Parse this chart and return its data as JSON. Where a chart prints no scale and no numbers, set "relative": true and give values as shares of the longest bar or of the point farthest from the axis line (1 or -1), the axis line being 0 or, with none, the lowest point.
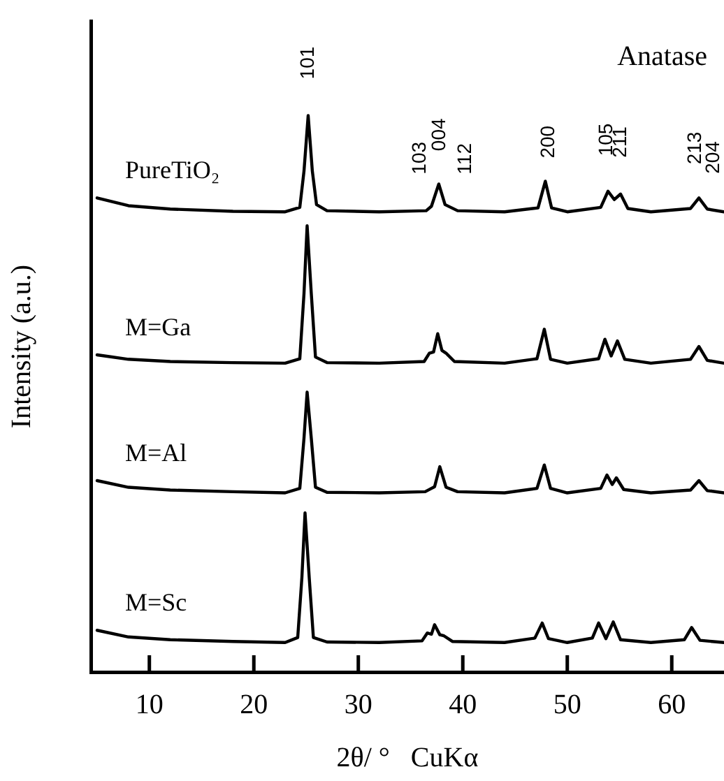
{
  "chart_data": {
    "type": "line",
    "relative": true,
    "xlabel": "2θ/ °   CuKα",
    "ylabel": "Intensity (a.u.)",
    "xlim": [
      4.4,
      65
    ],
    "xticks": [
      10,
      20,
      30,
      40,
      50,
      60
    ],
    "grid": false,
    "legend": false,
    "marker": "none",
    "line_style": "solid",
    "annotations": [
      "Anatase",
      {
        "text": "101",
        "x": 25.2,
        "y": 1.0
      },
      {
        "text": "103",
        "x": 35.9,
        "y": 0.829
      },
      {
        "text": "004",
        "x": 37.8,
        "y": 0.871
      },
      {
        "text": "112",
        "x": 40.3,
        "y": 0.829
      },
      {
        "text": "200",
        "x": 48.2,
        "y": 0.858
      },
      {
        "text": "105",
        "x": 53.8,
        "y": 0.862
      },
      {
        "text": "211",
        "x": 55.1,
        "y": 0.859
      },
      {
        "text": "213",
        "x": 62.3,
        "y": 0.847
      },
      {
        "text": "204",
        "x": 64.0,
        "y": 0.83
      }
    ],
    "series": [
      {
        "name": "PureTiO₂",
        "color": "#000000",
        "x": [
          5,
          8,
          12,
          18,
          23,
          24.4,
          24.8,
          25.2,
          25.6,
          26.0,
          27,
          32,
          36.5,
          37.0,
          37.7,
          38.3,
          39.5,
          44,
          47.2,
          47.9,
          48.5,
          50,
          53.2,
          53.9,
          54.5,
          55.1,
          55.8,
          58,
          61.8,
          62.6,
          63.4,
          65
        ],
        "values": [
          0.852,
          0.838,
          0.832,
          0.828,
          0.827,
          0.835,
          0.9,
          1.0,
          0.9,
          0.84,
          0.829,
          0.827,
          0.829,
          0.837,
          0.877,
          0.84,
          0.829,
          0.827,
          0.834,
          0.882,
          0.834,
          0.827,
          0.835,
          0.864,
          0.849,
          0.859,
          0.833,
          0.827,
          0.833,
          0.852,
          0.832,
          0.827
        ]
      },
      {
        "name": "M=Ga",
        "color": "#000000",
        "x": [
          5,
          8,
          12,
          18,
          23,
          24.4,
          24.8,
          25.1,
          25.5,
          25.9,
          27,
          32,
          36.3,
          36.8,
          37.2,
          37.6,
          38.0,
          38.4,
          39.2,
          44,
          47.1,
          47.8,
          48.4,
          50,
          53.0,
          53.6,
          54.2,
          54.8,
          55.5,
          58,
          61.8,
          62.6,
          63.4,
          65
        ],
        "values": [
          0.57,
          0.562,
          0.558,
          0.556,
          0.555,
          0.563,
          0.68,
          0.802,
          0.68,
          0.566,
          0.556,
          0.555,
          0.558,
          0.573,
          0.575,
          0.608,
          0.578,
          0.573,
          0.558,
          0.555,
          0.563,
          0.616,
          0.562,
          0.555,
          0.563,
          0.598,
          0.568,
          0.595,
          0.562,
          0.555,
          0.562,
          0.585,
          0.56,
          0.555
        ]
      },
      {
        "name": "M=Al",
        "color": "#000000",
        "x": [
          5,
          8,
          12,
          18,
          23,
          24.4,
          24.8,
          25.1,
          25.5,
          25.9,
          27,
          32,
          36.4,
          36.9,
          37.3,
          37.8,
          38.4,
          39.5,
          44,
          47.1,
          47.8,
          48.4,
          50,
          53.2,
          53.8,
          54.3,
          54.7,
          55.4,
          58,
          61.8,
          62.6,
          63.4,
          65
        ],
        "values": [
          0.344,
          0.332,
          0.327,
          0.324,
          0.322,
          0.33,
          0.42,
          0.503,
          0.42,
          0.332,
          0.323,
          0.322,
          0.324,
          0.329,
          0.333,
          0.369,
          0.332,
          0.324,
          0.322,
          0.33,
          0.372,
          0.33,
          0.322,
          0.33,
          0.354,
          0.337,
          0.349,
          0.328,
          0.322,
          0.327,
          0.344,
          0.326,
          0.322
        ]
      },
      {
        "name": "M=Sc",
        "color": "#000000",
        "x": [
          5,
          8,
          12,
          18,
          23,
          24.2,
          24.6,
          24.9,
          25.3,
          25.7,
          27,
          32,
          36.1,
          36.6,
          37.0,
          37.3,
          37.8,
          38.2,
          39.0,
          44,
          46.9,
          47.6,
          48.2,
          50,
          52.4,
          53.0,
          53.7,
          54.4,
          55.1,
          58,
          61.2,
          61.9,
          62.7,
          65
        ],
        "values": [
          0.075,
          0.063,
          0.058,
          0.055,
          0.053,
          0.062,
          0.17,
          0.286,
          0.17,
          0.062,
          0.054,
          0.053,
          0.056,
          0.07,
          0.068,
          0.085,
          0.067,
          0.065,
          0.055,
          0.053,
          0.061,
          0.088,
          0.06,
          0.053,
          0.061,
          0.088,
          0.06,
          0.09,
          0.058,
          0.053,
          0.058,
          0.08,
          0.057,
          0.053
        ]
      }
    ]
  }
}
